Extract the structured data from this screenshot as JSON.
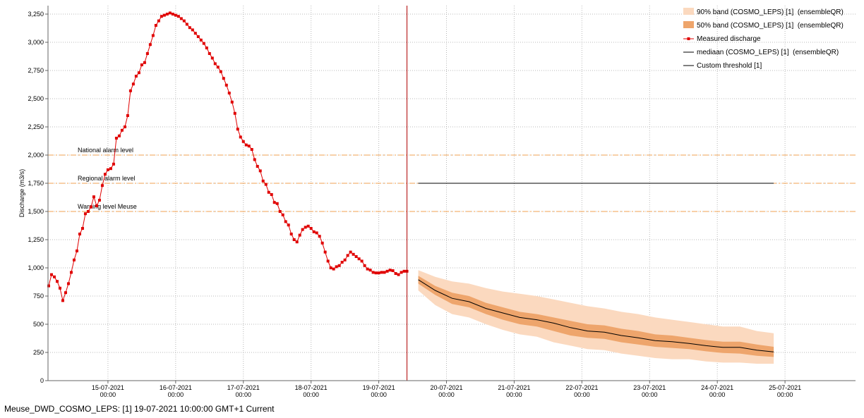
{
  "chart_data": {
    "type": "line",
    "y_label": "Discharge (m3/s)",
    "xlim": [
      "14-07-2021 02:45",
      "26-07-2021 01:00"
    ],
    "xticks": [
      "15-07-2021 00:00",
      "16-07-2021 00:00",
      "17-07-2021 00:00",
      "18-07-2021 00:00",
      "19-07-2021 00:00",
      "20-07-2021 00:00",
      "21-07-2021 00:00",
      "22-07-2021 00:00",
      "23-07-2021 00:00",
      "24-07-2021 00:00",
      "25-07-2021 00:00"
    ],
    "ylim": [
      0,
      3325
    ],
    "yticks": [
      0,
      250,
      500,
      750,
      {
        "value": 1000,
        "label": "1,000"
      },
      {
        "value": 1250,
        "label": "1,250"
      },
      {
        "value": 1500,
        "label": "1,500"
      },
      {
        "value": 1750,
        "label": "1,750"
      },
      {
        "value": 2000,
        "label": "2,000"
      },
      {
        "value": 2250,
        "label": "2,250"
      },
      {
        "value": 2500,
        "label": "2,500"
      },
      {
        "value": 2750,
        "label": "2,750"
      },
      {
        "value": 3000,
        "label": "3,000"
      },
      {
        "value": 3250,
        "label": "3,250"
      }
    ],
    "grid": true,
    "legend": "top-right",
    "current_time": "19-07-2021 10:00",
    "current_color": "#b00000",
    "thresholds": [
      {
        "label": "National alarm level",
        "value": 2000,
        "color": "#f0a050"
      },
      {
        "label": "Regional alarm level",
        "value": 1750,
        "color": "#f0a050"
      },
      {
        "label": "Warning level Meuse",
        "value": 1500,
        "color": "#f0a050"
      }
    ],
    "series": [
      {
        "name": "90% band (COSMO_LEPS) [1]  (ensembleQR)",
        "kind": "band",
        "color": "#fbd9bf",
        "x": [
          "19-07-2021 14:00",
          "19-07-2021 20:00",
          "20-07-2021 02:00",
          "20-07-2021 08:00",
          "20-07-2021 14:00",
          "20-07-2021 20:00",
          "21-07-2021 02:00",
          "21-07-2021 08:00",
          "21-07-2021 14:00",
          "21-07-2021 20:00",
          "22-07-2021 02:00",
          "22-07-2021 08:00",
          "22-07-2021 14:00",
          "22-07-2021 20:00",
          "23-07-2021 02:00",
          "23-07-2021 08:00",
          "23-07-2021 14:00",
          "23-07-2021 20:00",
          "24-07-2021 02:00",
          "24-07-2021 08:00",
          "24-07-2021 14:00",
          "24-07-2021 20:00"
        ],
        "lower": [
          800,
          670,
          590,
          560,
          500,
          450,
          410,
          390,
          340,
          310,
          280,
          270,
          240,
          220,
          200,
          190,
          190,
          170,
          160,
          160,
          150,
          150
        ],
        "upper": [
          980,
          920,
          880,
          860,
          820,
          790,
          770,
          750,
          720,
          690,
          660,
          640,
          610,
          590,
          560,
          540,
          520,
          500,
          480,
          480,
          440,
          420
        ]
      },
      {
        "name": "50% band (COSMO_LEPS) [1]  (ensembleQR)",
        "kind": "band",
        "color": "#eea56c",
        "x": [
          "19-07-2021 14:00",
          "19-07-2021 20:00",
          "20-07-2021 02:00",
          "20-07-2021 08:00",
          "20-07-2021 14:00",
          "20-07-2021 20:00",
          "21-07-2021 02:00",
          "21-07-2021 08:00",
          "21-07-2021 14:00",
          "21-07-2021 20:00",
          "22-07-2021 02:00",
          "22-07-2021 08:00",
          "22-07-2021 14:00",
          "22-07-2021 20:00",
          "23-07-2021 02:00",
          "23-07-2021 08:00",
          "23-07-2021 14:00",
          "23-07-2021 20:00",
          "24-07-2021 02:00",
          "24-07-2021 08:00",
          "24-07-2021 14:00",
          "24-07-2021 20:00"
        ],
        "lower": [
          860,
          760,
          680,
          650,
          590,
          540,
          500,
          480,
          440,
          400,
          380,
          370,
          340,
          320,
          300,
          290,
          280,
          260,
          245,
          240,
          220,
          210
        ],
        "upper": [
          930,
          840,
          780,
          750,
          690,
          650,
          610,
          590,
          560,
          530,
          500,
          490,
          460,
          440,
          410,
          400,
          380,
          360,
          345,
          345,
          320,
          300
        ]
      },
      {
        "name": "Measured discharge",
        "kind": "line-markers",
        "color": "#e00000",
        "x": [
          "14-07-2021 03:00",
          "14-07-2021 04:00",
          "14-07-2021 05:00",
          "14-07-2021 06:00",
          "14-07-2021 07:00",
          "14-07-2021 08:00",
          "14-07-2021 09:00",
          "14-07-2021 10:00",
          "14-07-2021 11:00",
          "14-07-2021 12:00",
          "14-07-2021 13:00",
          "14-07-2021 14:00",
          "14-07-2021 15:00",
          "14-07-2021 16:00",
          "14-07-2021 17:00",
          "14-07-2021 18:00",
          "14-07-2021 19:00",
          "14-07-2021 20:00",
          "14-07-2021 21:00",
          "14-07-2021 22:00",
          "14-07-2021 23:00",
          "15-07-2021 00:00",
          "15-07-2021 01:00",
          "15-07-2021 02:00",
          "15-07-2021 03:00",
          "15-07-2021 04:00",
          "15-07-2021 05:00",
          "15-07-2021 06:00",
          "15-07-2021 07:00",
          "15-07-2021 08:00",
          "15-07-2021 09:00",
          "15-07-2021 10:00",
          "15-07-2021 11:00",
          "15-07-2021 12:00",
          "15-07-2021 13:00",
          "15-07-2021 14:00",
          "15-07-2021 15:00",
          "15-07-2021 16:00",
          "15-07-2021 17:00",
          "15-07-2021 18:00",
          "15-07-2021 19:00",
          "15-07-2021 20:00",
          "15-07-2021 21:00",
          "15-07-2021 22:00",
          "15-07-2021 23:00",
          "16-07-2021 00:00",
          "16-07-2021 01:00",
          "16-07-2021 02:00",
          "16-07-2021 03:00",
          "16-07-2021 04:00",
          "16-07-2021 05:00",
          "16-07-2021 06:00",
          "16-07-2021 07:00",
          "16-07-2021 08:00",
          "16-07-2021 09:00",
          "16-07-2021 10:00",
          "16-07-2021 11:00",
          "16-07-2021 12:00",
          "16-07-2021 13:00",
          "16-07-2021 14:00",
          "16-07-2021 15:00",
          "16-07-2021 16:00",
          "16-07-2021 17:00",
          "16-07-2021 18:00",
          "16-07-2021 19:00",
          "16-07-2021 20:00",
          "16-07-2021 21:00",
          "16-07-2021 22:00",
          "16-07-2021 23:00",
          "17-07-2021 00:00",
          "17-07-2021 01:00",
          "17-07-2021 02:00",
          "17-07-2021 03:00",
          "17-07-2021 04:00",
          "17-07-2021 05:00",
          "17-07-2021 06:00",
          "17-07-2021 07:00",
          "17-07-2021 08:00",
          "17-07-2021 09:00",
          "17-07-2021 10:00",
          "17-07-2021 11:00",
          "17-07-2021 12:00",
          "17-07-2021 13:00",
          "17-07-2021 14:00",
          "17-07-2021 15:00",
          "17-07-2021 16:00",
          "17-07-2021 17:00",
          "17-07-2021 18:00",
          "17-07-2021 19:00",
          "17-07-2021 20:00",
          "17-07-2021 21:00",
          "17-07-2021 22:00",
          "17-07-2021 23:00",
          "18-07-2021 00:00",
          "18-07-2021 01:00",
          "18-07-2021 02:00",
          "18-07-2021 03:00",
          "18-07-2021 04:00",
          "18-07-2021 05:00",
          "18-07-2021 06:00",
          "18-07-2021 07:00",
          "18-07-2021 08:00",
          "18-07-2021 09:00",
          "18-07-2021 10:00",
          "18-07-2021 11:00",
          "18-07-2021 12:00",
          "18-07-2021 13:00",
          "18-07-2021 14:00",
          "18-07-2021 15:00",
          "18-07-2021 16:00",
          "18-07-2021 17:00",
          "18-07-2021 18:00",
          "18-07-2021 19:00",
          "18-07-2021 20:00",
          "18-07-2021 21:00",
          "18-07-2021 22:00",
          "18-07-2021 23:00",
          "19-07-2021 00:00",
          "19-07-2021 01:00",
          "19-07-2021 02:00",
          "19-07-2021 03:00",
          "19-07-2021 04:00",
          "19-07-2021 05:00",
          "19-07-2021 06:00",
          "19-07-2021 07:00",
          "19-07-2021 08:00",
          "19-07-2021 09:00",
          "19-07-2021 10:00"
        ],
        "values": [
          840,
          940,
          920,
          880,
          820,
          710,
          780,
          860,
          960,
          1070,
          1150,
          1300,
          1350,
          1480,
          1500,
          1540,
          1630,
          1550,
          1600,
          1730,
          1830,
          1870,
          1880,
          1920,
          2150,
          2170,
          2220,
          2250,
          2350,
          2570,
          2630,
          2700,
          2730,
          2800,
          2820,
          2900,
          2980,
          3060,
          3150,
          3190,
          3230,
          3240,
          3250,
          3260,
          3250,
          3240,
          3230,
          3210,
          3190,
          3160,
          3130,
          3110,
          3080,
          3050,
          3020,
          2990,
          2950,
          2900,
          2860,
          2810,
          2780,
          2740,
          2680,
          2620,
          2550,
          2470,
          2370,
          2230,
          2160,
          2120,
          2090,
          2080,
          2050,
          1960,
          1900,
          1860,
          1770,
          1740,
          1670,
          1650,
          1580,
          1570,
          1500,
          1470,
          1410,
          1380,
          1300,
          1250,
          1230,
          1290,
          1340,
          1360,
          1370,
          1350,
          1320,
          1310,
          1280,
          1220,
          1140,
          1060,
          1000,
          990,
          1010,
          1020,
          1050,
          1070,
          1110,
          1140,
          1120,
          1100,
          1080,
          1060,
          1020,
          990,
          980,
          960,
          955,
          955,
          960,
          960,
          970,
          980,
          975,
          950,
          940,
          960,
          970,
          970
        ]
      },
      {
        "name": "mediaan (COSMO_LEPS) [1]  (ensembleQR)",
        "kind": "line",
        "color": "#000000",
        "x": [
          "19-07-2021 14:00",
          "19-07-2021 20:00",
          "20-07-2021 02:00",
          "20-07-2021 08:00",
          "20-07-2021 14:00",
          "20-07-2021 20:00",
          "21-07-2021 02:00",
          "21-07-2021 08:00",
          "21-07-2021 14:00",
          "21-07-2021 20:00",
          "22-07-2021 02:00",
          "22-07-2021 08:00",
          "22-07-2021 14:00",
          "22-07-2021 20:00",
          "23-07-2021 02:00",
          "23-07-2021 08:00",
          "23-07-2021 14:00",
          "23-07-2021 20:00",
          "24-07-2021 02:00",
          "24-07-2021 08:00",
          "24-07-2021 14:00",
          "24-07-2021 20:00"
        ],
        "values": [
          895,
          800,
          730,
          700,
          640,
          600,
          560,
          540,
          510,
          470,
          440,
          430,
          400,
          380,
          355,
          345,
          330,
          310,
          295,
          295,
          270,
          255
        ]
      },
      {
        "name": "Custom threshold [1]",
        "kind": "line",
        "color": "#000000",
        "x": [
          "19-07-2021 14:00",
          "24-07-2021 20:00"
        ],
        "values": [
          1750,
          1750
        ]
      }
    ]
  },
  "status_bar": "Meuse_DWD_COSMO_LEPS: [1] 19-07-2021 10:00:00 GMT+1 Current"
}
